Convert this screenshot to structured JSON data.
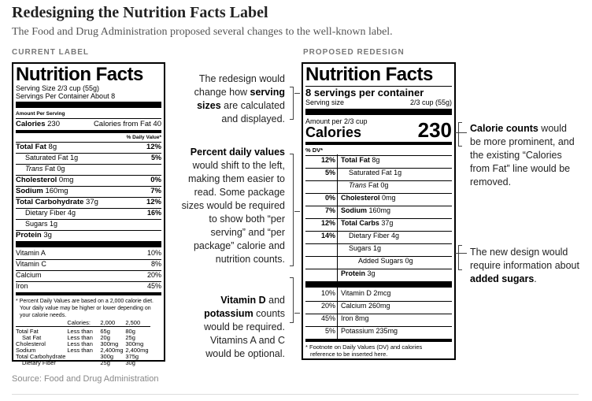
{
  "header": {
    "title": "Redesigning the Nutrition Facts Label",
    "subtitle": "The Food and Drug Administration proposed several changes to the well-known label."
  },
  "current": {
    "section_label": "CURRENT LABEL",
    "title": "Nutrition Facts",
    "serving_size": "Serving Size 2/3 cup (55g)",
    "servings_per_container": "Servings Per Container About 8",
    "amount_per_serving": "Amount Per Serving",
    "calories": "Calories",
    "calories_value": "230",
    "calories_from_fat": "Calories from Fat 40",
    "dv_header": "% Daily Value*",
    "nutrients": [
      {
        "name": "Total Fat",
        "amount": "8g",
        "dv": "12%"
      },
      {
        "name": "Saturated Fat",
        "amount": "1g",
        "dv": "5%"
      },
      {
        "name": "Trans",
        "amount": "Fat 0g",
        "dv": ""
      },
      {
        "name": "Cholesterol",
        "amount": "0mg",
        "dv": "0%"
      },
      {
        "name": "Sodium",
        "amount": "160mg",
        "dv": "7%"
      },
      {
        "name": "Total Carbohydrate",
        "amount": "37g",
        "dv": "12%"
      },
      {
        "name": "Dietary Fiber",
        "amount": "4g",
        "dv": "16%"
      },
      {
        "name": "Sugars",
        "amount": "1g",
        "dv": ""
      },
      {
        "name": "Protein",
        "amount": "3g",
        "dv": ""
      }
    ],
    "vitamins": [
      {
        "name": "Vitamin A",
        "dv": "10%"
      },
      {
        "name": "Vitamin C",
        "dv": "8%"
      },
      {
        "name": "Calcium",
        "dv": "20%"
      },
      {
        "name": "Iron",
        "dv": "45%"
      }
    ],
    "footnote": [
      "* Percent Daily Values are based on a 2,000 calorie diet.",
      "Your daily value may be higher or lower depending on",
      "your calorie needs."
    ],
    "footnote_table": {
      "header": [
        "Calories:",
        "2,000",
        "2,500"
      ],
      "rows": [
        [
          "Total Fat",
          "Less than",
          "65g",
          "80g"
        ],
        [
          "Sat Fat",
          "Less than",
          "20g",
          "25g"
        ],
        [
          "Cholesterol",
          "Less than",
          "300mg",
          "300mg"
        ],
        [
          "Sodium",
          "Less than",
          "2,400mg",
          "2,400mg"
        ],
        [
          "Total Carbohydrate",
          "",
          "300g",
          "375g"
        ],
        [
          "Dietary Fiber",
          "",
          "25g",
          "30g"
        ]
      ]
    }
  },
  "proposed": {
    "section_label": "PROPOSED REDESIGN",
    "title": "Nutrition Facts",
    "servings": "8 servings per container",
    "serving_size_label": "Serving size",
    "serving_size_value": "2/3 cup (55g)",
    "amount_per": "Amount per 2/3 cup",
    "calories": "Calories",
    "calories_value": "230",
    "dv_header": "% DV*",
    "nutrients": [
      {
        "dv": "12%",
        "name": "Total Fat",
        "amount": "8g"
      },
      {
        "dv": "5%",
        "name": "Saturated Fat",
        "amount": "1g"
      },
      {
        "dv": "",
        "name": "Trans",
        "amount": "Fat 0g"
      },
      {
        "dv": "0%",
        "name": "Cholesterol",
        "amount": "0mg"
      },
      {
        "dv": "7%",
        "name": "Sodium",
        "amount": "160mg"
      },
      {
        "dv": "12%",
        "name": "Total Carbs",
        "amount": "37g"
      },
      {
        "dv": "14%",
        "name": "Dietary Fiber",
        "amount": "4g"
      },
      {
        "dv": "",
        "name": "Sugars",
        "amount": "1g"
      },
      {
        "dv": "",
        "name": "Added Sugars",
        "amount": "0g"
      },
      {
        "dv": "",
        "name": "Protein",
        "amount": "3g"
      }
    ],
    "vitamins": [
      {
        "dv": "10%",
        "name": "Vitamin D",
        "amount": "2mcg"
      },
      {
        "dv": "20%",
        "name": "Calcium",
        "amount": "260mg"
      },
      {
        "dv": "45%",
        "name": "Iron",
        "amount": "8mg"
      },
      {
        "dv": "5%",
        "name": "Potassium",
        "amount": "235mg"
      }
    ],
    "footnote": [
      "* Footnote on Daily Values (DV) and calories",
      "reference to be inserted here."
    ]
  },
  "annotations": {
    "serving": {
      "pre": "The redesign would change how ",
      "bold": "serving sizes",
      "post": " are calculated and displayed."
    },
    "percent": {
      "bold": "Percent daily values",
      "post": " would shift to the left, making them easier to read. Some package sizes would be required to show both “per serving” and “per package” calorie and nutrition counts."
    },
    "vitamin": {
      "bold1": "Vitamin D",
      "mid1": " and ",
      "bold2": "potassium",
      "post": " counts would be required. Vitamins A and C would be optional."
    },
    "calorie": {
      "bold": "Calorie counts",
      "post": " would be more prominent, and the existing “Calories from Fat” line would be removed."
    },
    "sugar": {
      "pre": "The new design would require information about ",
      "bold": "added sugars",
      "post": "."
    }
  },
  "source": "Source: Food and Drug Administration"
}
